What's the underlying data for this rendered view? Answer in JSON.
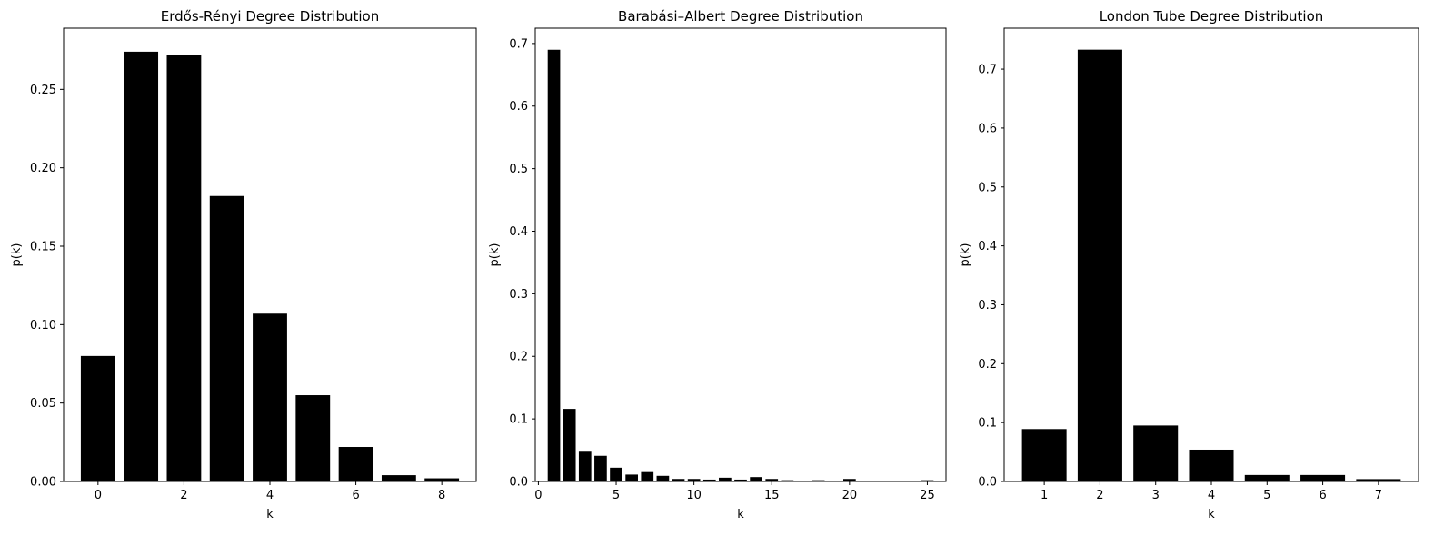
{
  "chart_data": [
    {
      "type": "bar",
      "title": "Erdős-Rényi Degree Distribution",
      "xlabel": "k",
      "ylabel": "p(k)",
      "x": [
        0,
        1,
        2,
        3,
        4,
        5,
        6,
        7,
        8
      ],
      "values": [
        0.08,
        0.274,
        0.272,
        0.182,
        0.107,
        0.055,
        0.022,
        0.004,
        0.002
      ],
      "xlim": [
        -0.8,
        8.8
      ],
      "ylim": [
        0,
        0.289
      ],
      "xticks": [
        0,
        2,
        4,
        6,
        8
      ],
      "yticks": [
        0.0,
        0.05,
        0.1,
        0.15,
        0.2,
        0.25
      ],
      "ytick_decimals": 2,
      "bar_color": "#000000",
      "grid": false
    },
    {
      "type": "bar",
      "title": "Barabási–Albert Degree Distribution",
      "xlabel": "k",
      "ylabel": "p(k)",
      "x": [
        1,
        2,
        3,
        4,
        5,
        6,
        7,
        8,
        9,
        10,
        11,
        12,
        13,
        14,
        15,
        16,
        18,
        20,
        25
      ],
      "values": [
        0.69,
        0.116,
        0.049,
        0.041,
        0.022,
        0.011,
        0.015,
        0.009,
        0.004,
        0.004,
        0.003,
        0.006,
        0.003,
        0.007,
        0.004,
        0.002,
        0.002,
        0.004,
        0.002
      ],
      "xlim": [
        -0.2,
        26.2
      ],
      "ylim": [
        0,
        0.7245
      ],
      "xticks": [
        0,
        5,
        10,
        15,
        20,
        25
      ],
      "yticks": [
        0.0,
        0.1,
        0.2,
        0.3,
        0.4,
        0.5,
        0.6,
        0.7
      ],
      "ytick_decimals": 1,
      "bar_color": "#000000",
      "grid": false
    },
    {
      "type": "bar",
      "title": "London Tube Degree Distribution",
      "xlabel": "k",
      "ylabel": "p(k)",
      "x": [
        1,
        2,
        3,
        4,
        5,
        6,
        7
      ],
      "values": [
        0.089,
        0.733,
        0.095,
        0.054,
        0.011,
        0.011,
        0.004
      ],
      "xlim": [
        0.28,
        7.72
      ],
      "ylim": [
        0,
        0.7695
      ],
      "xticks": [
        1,
        2,
        3,
        4,
        5,
        6,
        7
      ],
      "yticks": [
        0.0,
        0.1,
        0.2,
        0.3,
        0.4,
        0.5,
        0.6,
        0.7
      ],
      "ytick_decimals": 1,
      "bar_color": "#000000",
      "grid": false
    }
  ]
}
